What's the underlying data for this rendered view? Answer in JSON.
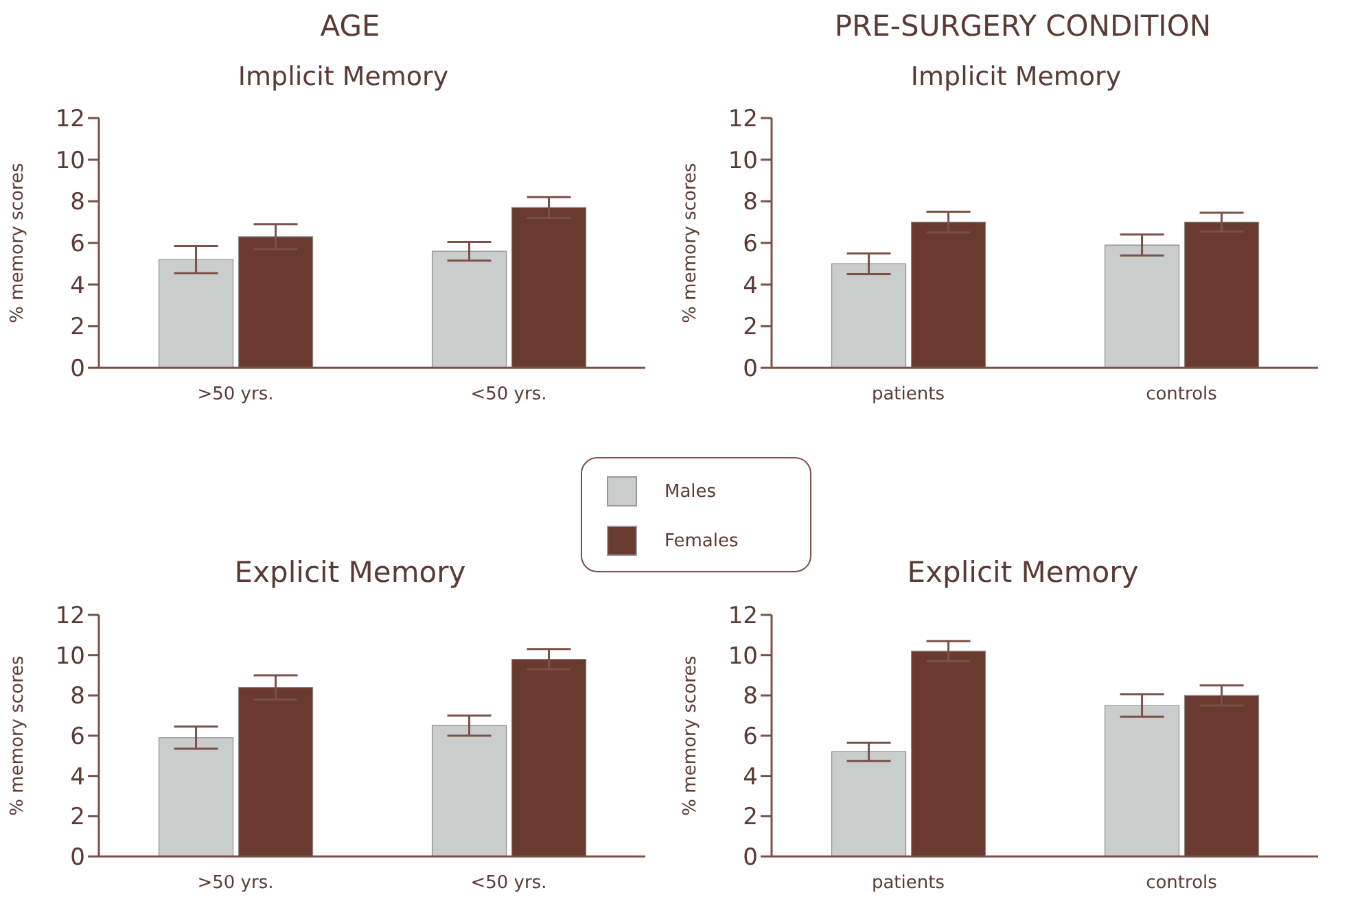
{
  "chart_data": [
    {
      "type": "bar",
      "title": "AGE",
      "subtitle": "Implicit Memory",
      "ylabel": "% memory scores",
      "categories": [
        ">50 yrs.",
        "<50 yrs."
      ],
      "series": [
        {
          "name": "Males",
          "color": "#c9cdcb",
          "values": [
            5.2,
            5.6
          ],
          "errors": [
            0.65,
            0.45
          ]
        },
        {
          "name": "Females",
          "color": "#6b3a2e",
          "values": [
            6.3,
            7.7
          ],
          "errors": [
            0.6,
            0.5
          ]
        }
      ],
      "ylim": [
        0,
        12
      ],
      "yticks": [
        0,
        2,
        4,
        6,
        8,
        10,
        12
      ],
      "grid": false,
      "legend": "bottom right"
    },
    {
      "type": "bar",
      "title": "PRE-SURGERY CONDITION",
      "subtitle": "Implicit Memory",
      "ylabel": "% memory scores",
      "categories": [
        "patients",
        "controls"
      ],
      "series": [
        {
          "color": "#c9cdcb",
          "values": [
            5.0,
            5.9
          ],
          "errors": [
            0.5,
            0.5
          ]
        },
        {
          "color": "#6b3a2e",
          "values": [
            7.0,
            7.0
          ],
          "errors": [
            0.5,
            0.45
          ]
        }
      ],
      "ylim": [
        0,
        12
      ],
      "yticks": [
        0,
        2,
        4,
        6,
        8,
        10,
        12
      ],
      "grid": false
    },
    {
      "type": "bar",
      "title": "Explicit Memory",
      "ylabel": "% memory scores",
      "categories": [
        ">50 yrs.",
        "<50 yrs."
      ],
      "series": [
        {
          "color": "#c9cdcb",
          "values": [
            5.9,
            6.5
          ],
          "errors": [
            0.55,
            0.5
          ]
        },
        {
          "color": "#6b3a2e",
          "values": [
            8.4,
            9.8
          ],
          "errors": [
            0.6,
            0.5
          ]
        }
      ],
      "ylim": [
        0,
        12
      ],
      "yticks": [
        0,
        2,
        4,
        6,
        8,
        10,
        12
      ],
      "grid": false
    },
    {
      "type": "bar",
      "title": "Explicit Memory",
      "ylabel": "% memory scores",
      "categories": [
        "patients",
        "controls"
      ],
      "series": [
        {
          "color": "#c9cdcb",
          "values": [
            5.2,
            7.5
          ],
          "errors": [
            0.45,
            0.55
          ]
        },
        {
          "color": "#6b3a2e",
          "values": [
            10.2,
            8.0
          ],
          "errors": [
            0.5,
            0.5
          ]
        }
      ],
      "ylim": [
        0,
        12
      ],
      "yticks": [
        0,
        2,
        4,
        6,
        8,
        10,
        12
      ],
      "grid": false
    }
  ]
}
